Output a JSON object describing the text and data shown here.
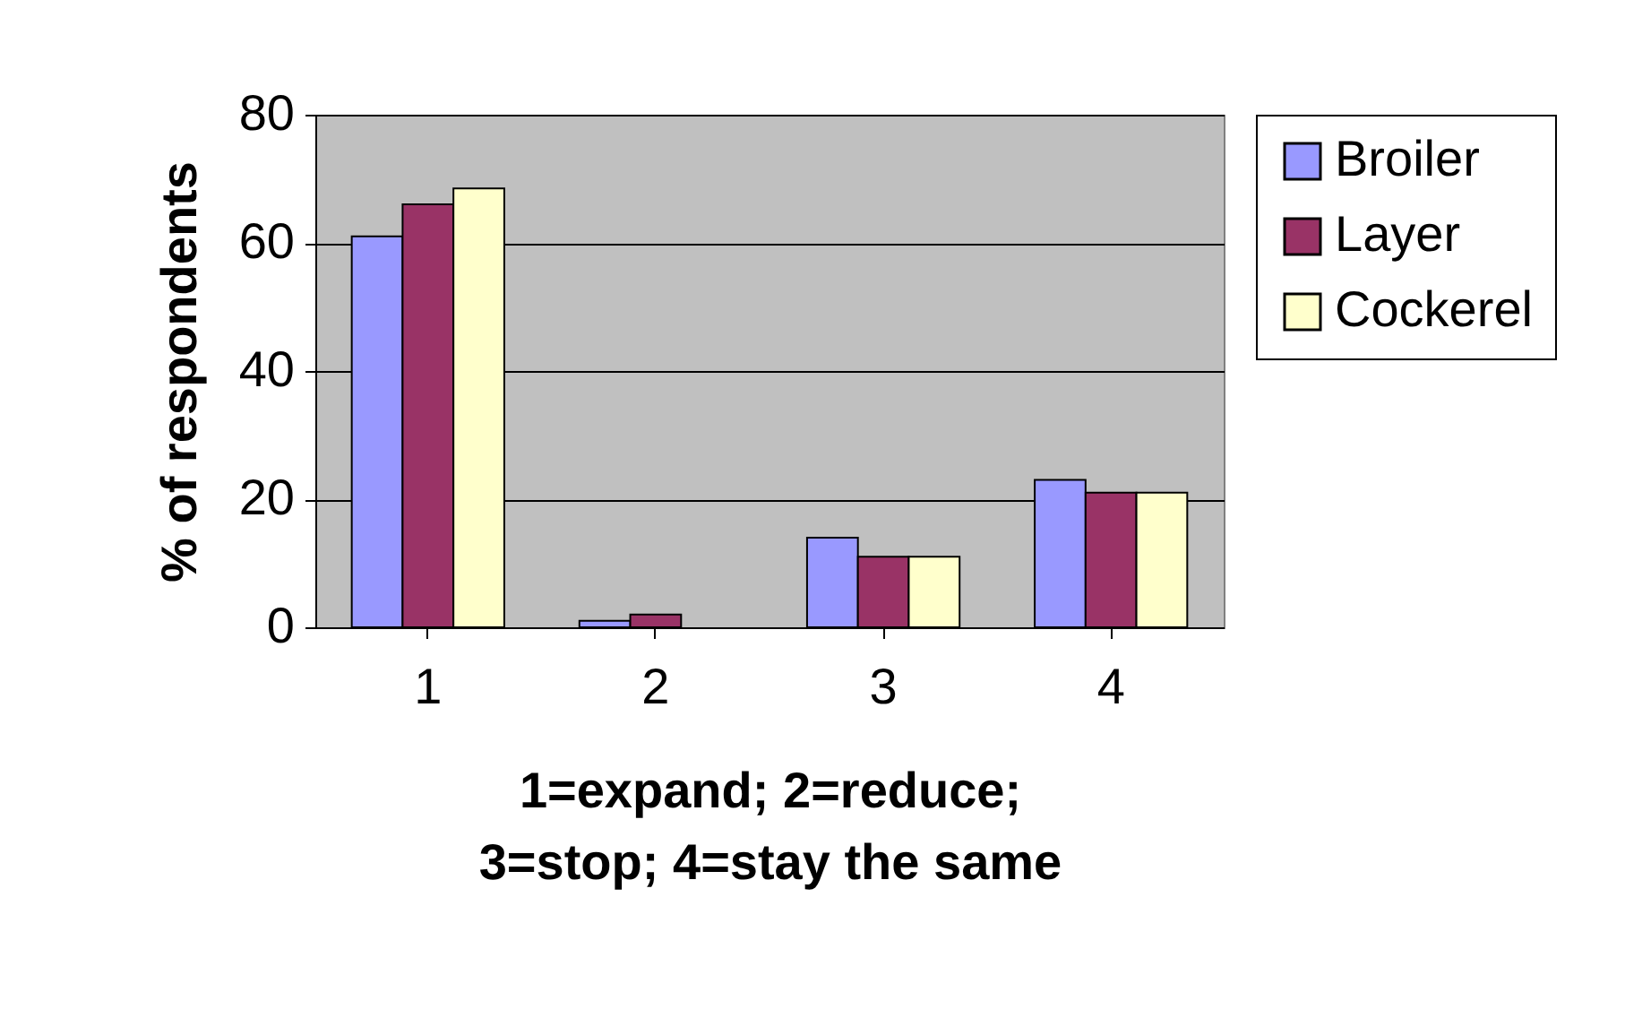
{
  "chart_data": {
    "type": "bar",
    "xlabel": "1=expand; 2=reduce;\n3=stop; 4=stay the same",
    "ylabel": "% of respondents",
    "categories": [
      "1",
      "2",
      "3",
      "4"
    ],
    "series": [
      {
        "name": "Broiler",
        "color": "#9999ff",
        "values": [
          61,
          1,
          14,
          23
        ]
      },
      {
        "name": "Layer",
        "color": "#993366",
        "values": [
          66,
          2,
          11,
          21
        ]
      },
      {
        "name": "Cockerel",
        "color": "#ffffcc",
        "values": [
          68.5,
          null,
          11,
          21
        ]
      }
    ],
    "ylim": [
      0,
      80
    ],
    "yticks": [
      0,
      20,
      40,
      60,
      80
    ],
    "grid": "y",
    "legend": "right"
  }
}
